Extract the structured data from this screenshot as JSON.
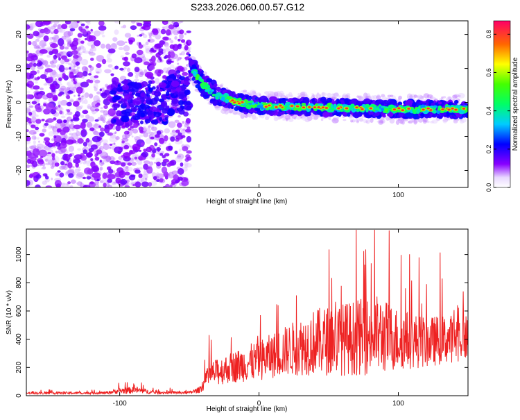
{
  "page_title": "S233.2026.060.00.57.G12",
  "chart_data": [
    {
      "type": "heatmap",
      "xlabel": "Height of straight line (km)",
      "ylabel": "Frequency (Hz)",
      "xlim": [
        -167,
        150
      ],
      "ylim": [
        -25,
        24
      ],
      "xticks": [
        -100,
        0,
        100
      ],
      "yticks": [
        -20,
        -10,
        0,
        10,
        20
      ],
      "colorbar": {
        "label": "Normalized spectral amplitude",
        "range": [
          0,
          0.87
        ],
        "ticks": [
          0.0,
          0.2,
          0.4,
          0.6,
          0.8
        ],
        "tick_labels": [
          "0.0",
          "0.2",
          "0.4",
          "0.6",
          "0.8"
        ]
      },
      "description_points": [
        {
          "x": -50,
          "freq": 11
        },
        {
          "x": -40,
          "freq": 5
        },
        {
          "x": -30,
          "freq": 2
        },
        {
          "x": -15,
          "freq": 0
        },
        {
          "x": 0,
          "freq": -1
        },
        {
          "x": 50,
          "freq": -1.5
        },
        {
          "x": 100,
          "freq": -2
        },
        {
          "x": 150,
          "freq": -2
        }
      ]
    },
    {
      "type": "line",
      "color": "#ee2222",
      "xlabel": "Height of straight line (km)",
      "ylabel": "SNR (10 * v/v)",
      "xlim": [
        -167,
        150
      ],
      "ylim": [
        0,
        1180
      ],
      "xticks": [
        -100,
        0,
        100
      ],
      "yticks": [
        0,
        200,
        400,
        600,
        800,
        1000
      ],
      "envelope": [
        {
          "x": -167,
          "mean": 18,
          "spread": 14
        },
        {
          "x": -110,
          "mean": 20,
          "spread": 16
        },
        {
          "x": -100,
          "mean": 35,
          "spread": 40
        },
        {
          "x": -88,
          "mean": 40,
          "spread": 45
        },
        {
          "x": -75,
          "mean": 22,
          "spread": 18
        },
        {
          "x": -50,
          "mean": 22,
          "spread": 18
        },
        {
          "x": -43,
          "mean": 40,
          "spread": 40
        },
        {
          "x": -35,
          "mean": 150,
          "spread": 160
        },
        {
          "x": -20,
          "mean": 200,
          "spread": 200
        },
        {
          "x": 0,
          "mean": 250,
          "spread": 260
        },
        {
          "x": 20,
          "mean": 320,
          "spread": 330
        },
        {
          "x": 40,
          "mean": 380,
          "spread": 430
        },
        {
          "x": 60,
          "mean": 400,
          "spread": 470
        },
        {
          "x": 85,
          "mean": 430,
          "spread": 520
        },
        {
          "x": 100,
          "mean": 400,
          "spread": 400
        },
        {
          "x": 120,
          "mean": 380,
          "spread": 330
        },
        {
          "x": 150,
          "mean": 420,
          "spread": 300
        }
      ]
    }
  ]
}
